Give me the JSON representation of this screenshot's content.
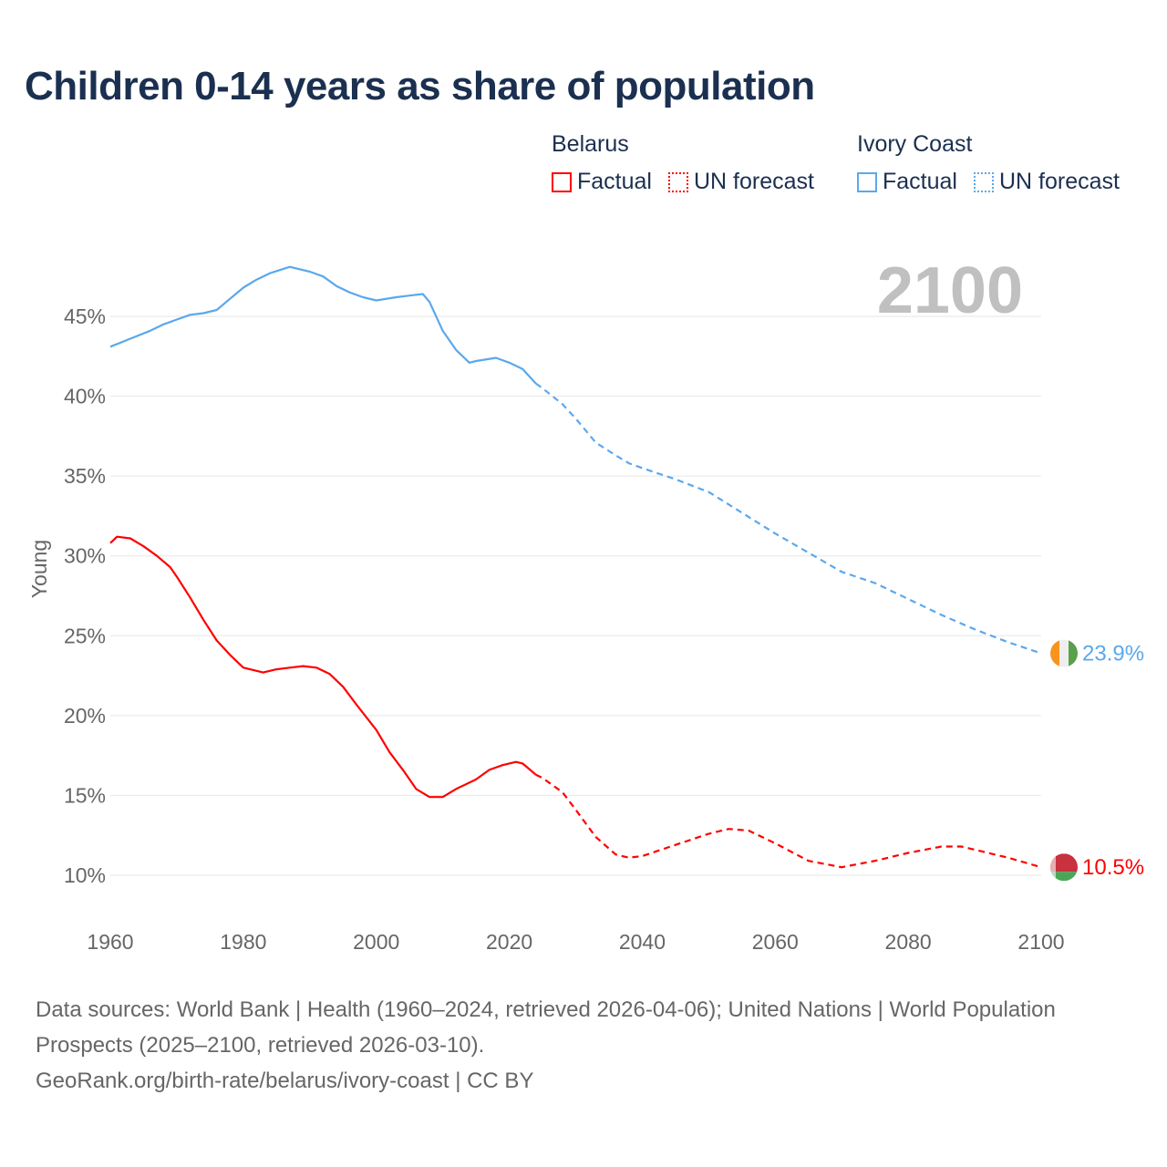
{
  "title": "Children 0-14 years as share of population",
  "big_year": "2100",
  "legend": [
    {
      "country": "Belarus",
      "factual": "Factual",
      "forecast": "UN forecast",
      "color": "#ff0000"
    },
    {
      "country": "Ivory Coast",
      "factual": "Factual",
      "forecast": "UN forecast",
      "color": "#5ba8ec"
    }
  ],
  "footer": {
    "line1": "Data sources: World Bank | Health (1960–2024, retrieved 2026-04-06); United Nations | World Population Prospects (2025–2100, retrieved 2026-03-10).",
    "line2": "GeoRank.org/birth-rate/belarus/ivory-coast | CC BY"
  },
  "chart_data": {
    "type": "line",
    "title": "Children 0-14 years as share of population",
    "xlabel": "",
    "ylabel": "Young",
    "xlim": [
      1960,
      2100
    ],
    "ylim": [
      8,
      50
    ],
    "x_ticks": [
      "1960",
      "1980",
      "2000",
      "2020",
      "2040",
      "2060",
      "2080",
      "2100"
    ],
    "y_ticks": [
      {
        "value": 10,
        "label": "10%"
      },
      {
        "value": 15,
        "label": "15%"
      },
      {
        "value": 20,
        "label": "20%"
      },
      {
        "value": 25,
        "label": "25%"
      },
      {
        "value": 30,
        "label": "30%"
      },
      {
        "value": 35,
        "label": "35%"
      },
      {
        "value": 40,
        "label": "40%"
      },
      {
        "value": 45,
        "label": "45%"
      }
    ],
    "factual_until": 2024,
    "series": [
      {
        "name": "Belarus",
        "color": "#ff0000",
        "end_label": "10.5%",
        "flag": {
          "colors": [
            "#c8313e",
            "#4aa657",
            "#ffffff"
          ]
        },
        "x": [
          1960,
          1961,
          1963,
          1965,
          1967,
          1969,
          1970,
          1972,
          1974,
          1976,
          1978,
          1980,
          1983,
          1985,
          1987,
          1989,
          1991,
          1993,
          1995,
          1997,
          2000,
          2002,
          2004,
          2006,
          2008,
          2010,
          2012,
          2015,
          2017,
          2019,
          2021,
          2022,
          2024,
          2025,
          2028,
          2030,
          2033,
          2036,
          2038,
          2040,
          2045,
          2050,
          2053,
          2056,
          2060,
          2065,
          2070,
          2075,
          2080,
          2085,
          2088,
          2095,
          2100
        ],
        "y": [
          30.8,
          31.2,
          31.1,
          30.6,
          30.0,
          29.3,
          28.7,
          27.4,
          26.0,
          24.7,
          23.8,
          23.0,
          22.7,
          22.9,
          23.0,
          23.1,
          23.0,
          22.6,
          21.8,
          20.7,
          19.1,
          17.7,
          16.6,
          15.4,
          14.9,
          14.9,
          15.4,
          16.0,
          16.6,
          16.9,
          17.1,
          17.0,
          16.3,
          16.1,
          15.2,
          14.1,
          12.4,
          11.3,
          11.1,
          11.2,
          11.9,
          12.6,
          12.9,
          12.8,
          12.0,
          10.9,
          10.5,
          10.9,
          11.4,
          11.8,
          11.8,
          11.1,
          10.5
        ]
      },
      {
        "name": "Ivory Coast",
        "color": "#5ba8ec",
        "end_label": "23.9%",
        "flag": {
          "colors": [
            "#f7941d",
            "#eeeeee",
            "#5a9f4a"
          ]
        },
        "x": [
          1960,
          1963,
          1966,
          1968,
          1970,
          1972,
          1974,
          1976,
          1978,
          1980,
          1982,
          1984,
          1987,
          1990,
          1992,
          1994,
          1996,
          1998,
          2000,
          2003,
          2005,
          2007,
          2008,
          2010,
          2012,
          2014,
          2015,
          2018,
          2020,
          2022,
          2024,
          2025,
          2028,
          2030,
          2033,
          2036,
          2038,
          2040,
          2045,
          2050,
          2055,
          2060,
          2065,
          2070,
          2075,
          2080,
          2085,
          2090,
          2095,
          2100
        ],
        "y": [
          43.1,
          43.6,
          44.1,
          44.5,
          44.8,
          45.1,
          45.2,
          45.4,
          46.1,
          46.8,
          47.3,
          47.7,
          48.1,
          47.8,
          47.5,
          46.9,
          46.5,
          46.2,
          46.0,
          46.2,
          46.3,
          46.4,
          45.9,
          44.1,
          42.9,
          42.1,
          42.2,
          42.4,
          42.1,
          41.7,
          40.8,
          40.5,
          39.5,
          38.6,
          37.1,
          36.3,
          35.8,
          35.5,
          34.8,
          34.0,
          32.7,
          31.4,
          30.2,
          29.0,
          28.3,
          27.3,
          26.3,
          25.4,
          24.6,
          23.9
        ]
      }
    ]
  }
}
